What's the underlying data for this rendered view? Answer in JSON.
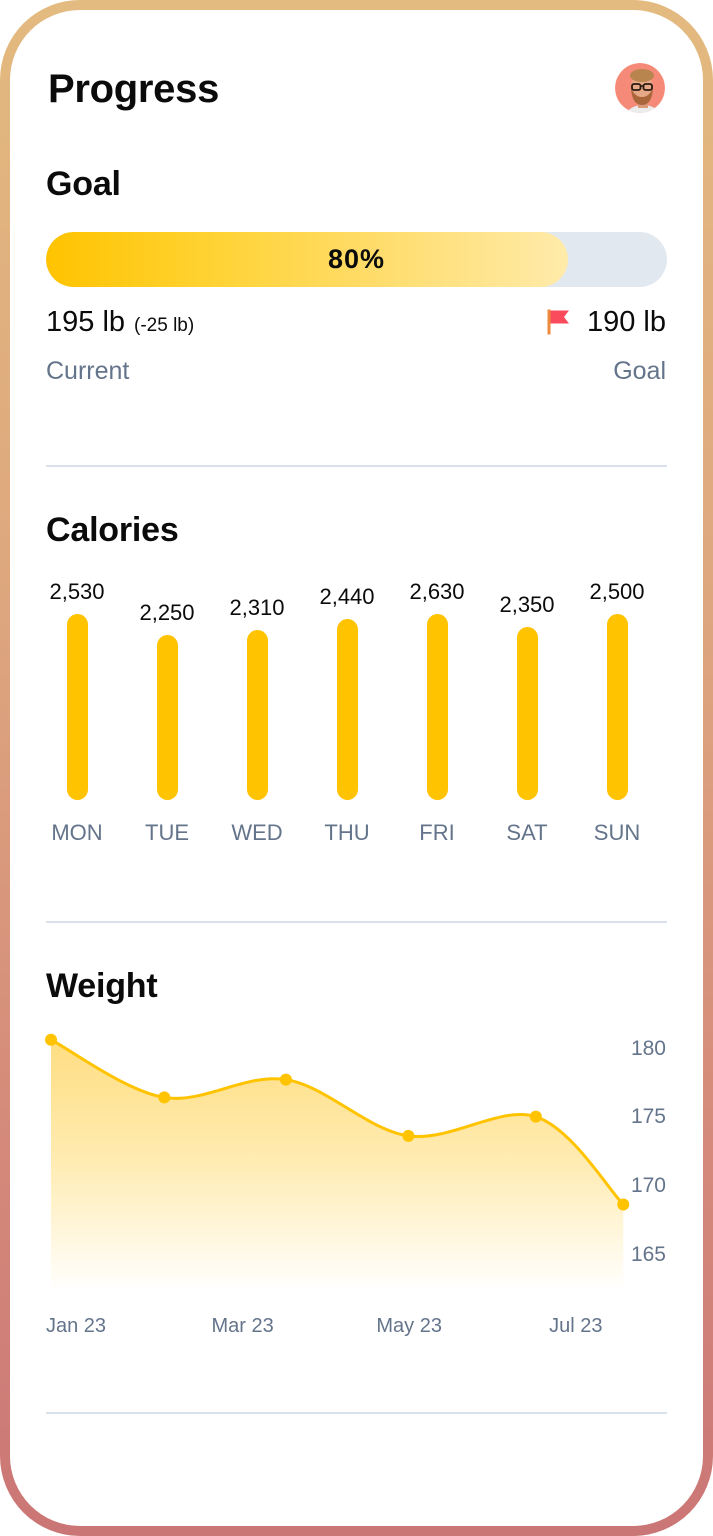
{
  "header": {
    "title": "Progress",
    "avatar_icon": "user-avatar"
  },
  "goal": {
    "heading": "Goal",
    "progress_percent": 80,
    "progress_label": "80%",
    "current_value": "195 lb",
    "current_change": "(-25 lb)",
    "current_label": "Current",
    "goal_icon": "flag-icon",
    "goal_value": "190 lb",
    "goal_label": "Goal"
  },
  "calories": {
    "heading": "Calories"
  },
  "weight": {
    "heading": "Weight"
  },
  "colors": {
    "accent": "#FFC300",
    "progress_track": "#E2E8F0",
    "muted_text": "#64748B",
    "divider": "#D9E1EA",
    "flag": "#F94B5C",
    "frame_top": "#E3BA7F",
    "frame_bottom": "#CB7676"
  },
  "chart_data": [
    {
      "type": "bar",
      "title": "Calories",
      "categories": [
        "MON",
        "TUE",
        "WED",
        "THU",
        "FRI",
        "SAT",
        "SUN"
      ],
      "values": [
        2530,
        2250,
        2310,
        2440,
        2630,
        2350,
        2500
      ],
      "value_labels": [
        "2,530",
        "2,250",
        "2,310",
        "2,440",
        "2,630",
        "2,350",
        "2,500"
      ],
      "xlabel": "",
      "ylabel": "",
      "grid": false,
      "legend": "none"
    },
    {
      "type": "area",
      "title": "Weight",
      "xlabel": "",
      "ylabel": "",
      "x_tick_labels": [
        "Jan 23",
        "Mar 23",
        "May 23",
        "Jul 23"
      ],
      "x_tick_month_offsets": [
        0,
        2,
        4,
        6
      ],
      "y_ticks": [
        180,
        175,
        170,
        165
      ],
      "y_axis_position": "right",
      "ylim": [
        163,
        181
      ],
      "grid": false,
      "legend": "none",
      "points": [
        {
          "x": -0.3,
          "y": 180.6
        },
        {
          "x": 1.06,
          "y": 176.4
        },
        {
          "x": 2.52,
          "y": 177.7
        },
        {
          "x": 3.99,
          "y": 173.6
        },
        {
          "x": 5.52,
          "y": 175.0
        },
        {
          "x": 6.57,
          "y": 168.6
        }
      ]
    }
  ]
}
